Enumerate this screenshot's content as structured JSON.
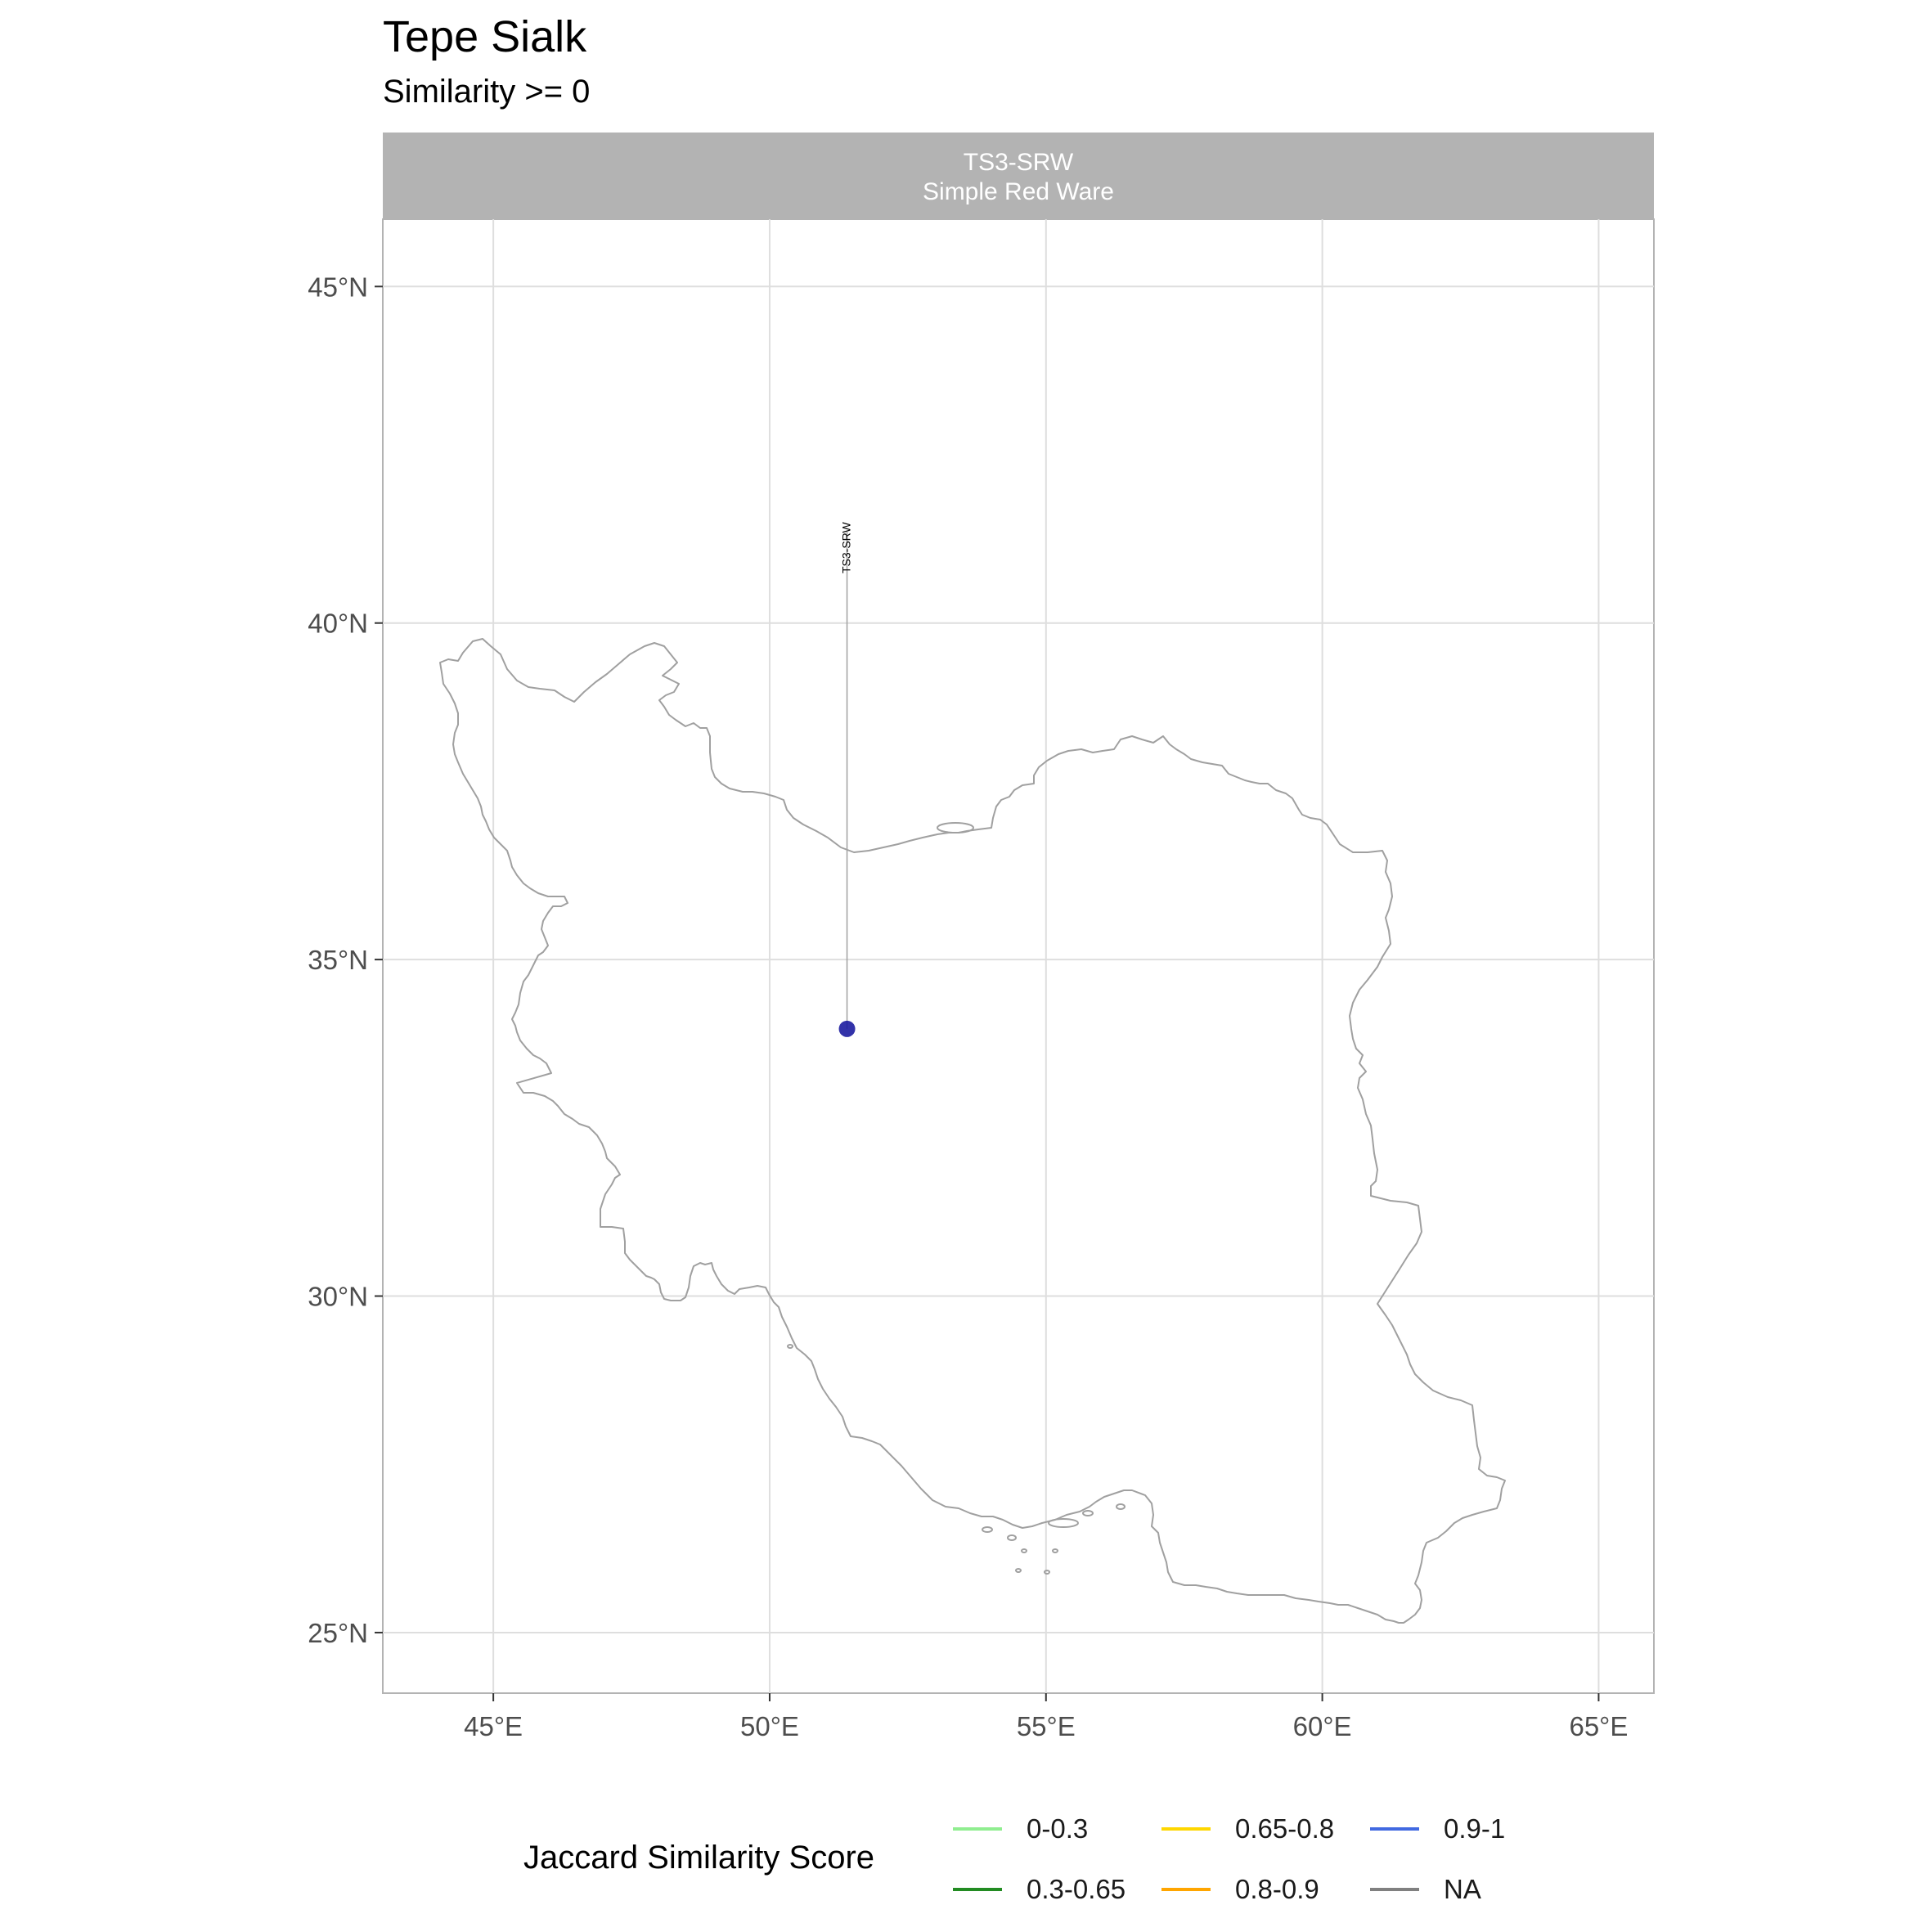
{
  "title": "Tepe Sialk",
  "subtitle": "Similarity >= 0",
  "facet": {
    "code": "TS3-SRW",
    "name": "Simple Red Ware"
  },
  "map": {
    "x_axis": {
      "ticks": [
        45,
        50,
        55,
        60,
        65
      ],
      "labels": [
        "45°E",
        "50°E",
        "55°E",
        "60°E",
        "65°E"
      ],
      "range": [
        43,
        66
      ]
    },
    "y_axis": {
      "ticks": [
        25,
        30,
        35,
        40,
        45
      ],
      "labels": [
        "25°N",
        "30°N",
        "35°N",
        "40°N",
        "45°N"
      ],
      "range": [
        24.1,
        46
      ]
    },
    "region_outline": "Iran",
    "site_point": {
      "label": "TS3-SRW",
      "lon": 51.4,
      "lat": 33.97,
      "label_lat": 41.5,
      "color": "#1c1ca0"
    }
  },
  "legend": {
    "title": "Jaccard Similarity Score",
    "items": [
      {
        "label": "0-0.3",
        "color": "#90ee90"
      },
      {
        "label": "0.3-0.65",
        "color": "#228b22"
      },
      {
        "label": "0.65-0.8",
        "color": "#ffd700"
      },
      {
        "label": "0.8-0.9",
        "color": "#ffa500"
      },
      {
        "label": "0.9-1",
        "color": "#4169e1"
      },
      {
        "label": "NA",
        "color": "#808080"
      }
    ]
  }
}
